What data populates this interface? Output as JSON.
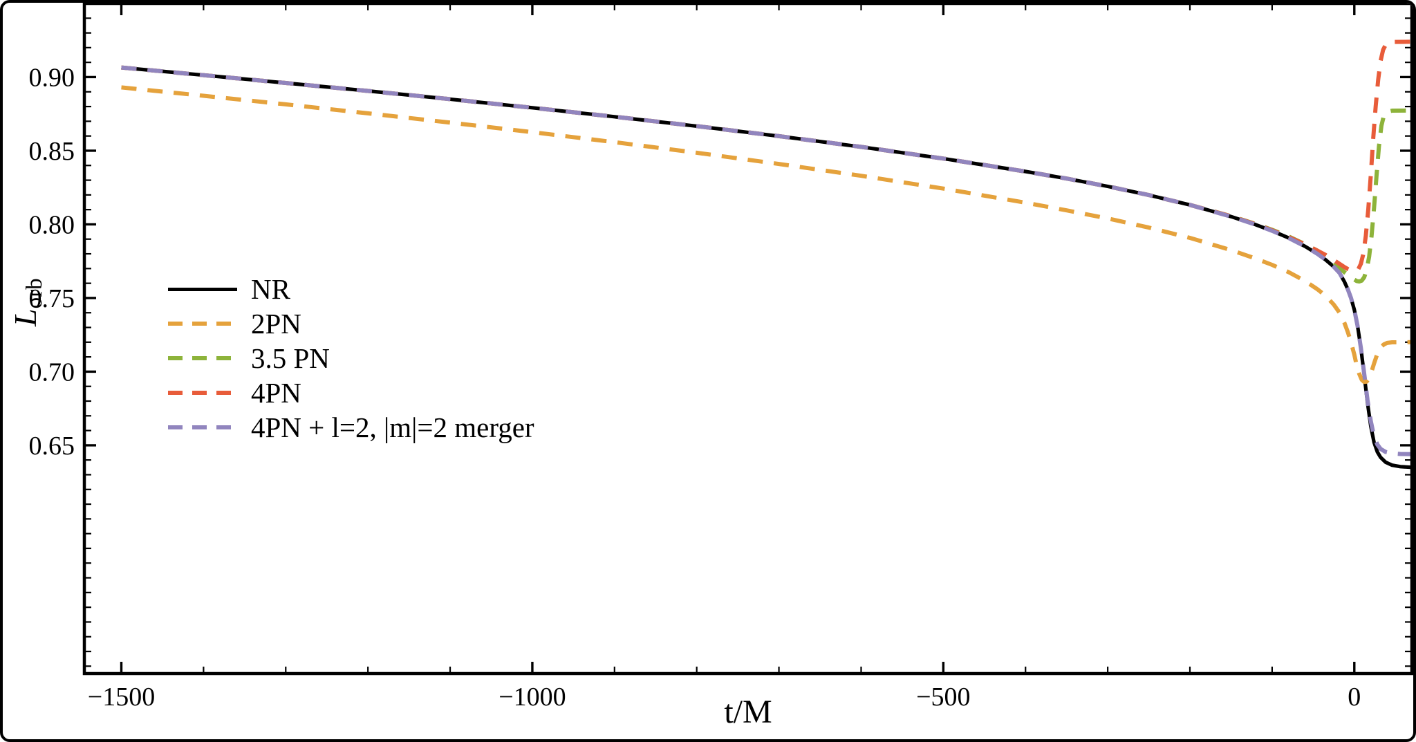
{
  "figure": {
    "background": "#ffffff",
    "frame_color": "#000000"
  },
  "axes": {
    "xlabel": "t/M",
    "ylabel": {
      "main": "L",
      "sub": "orb"
    },
    "x_range": [
      -1545,
      70
    ],
    "y_range": [
      0.495,
      0.95
    ],
    "x_minor_step": 100,
    "y_minor_step": 0.01,
    "frame_color": "#000000",
    "x_ticks": [
      {
        "v": -1500,
        "label": "−1500"
      },
      {
        "v": -1000,
        "label": "−1000"
      },
      {
        "v": -500,
        "label": "−500"
      },
      {
        "v": 0,
        "label": "0"
      }
    ],
    "y_ticks": [
      {
        "v": 0.65,
        "label": "0.65"
      },
      {
        "v": 0.7,
        "label": "0.70"
      },
      {
        "v": 0.75,
        "label": "0.75"
      },
      {
        "v": 0.8,
        "label": "0.80"
      },
      {
        "v": 0.85,
        "label": "0.85"
      },
      {
        "v": 0.9,
        "label": "0.90"
      }
    ]
  },
  "chart_data": {
    "type": "line",
    "title": "",
    "xlabel": "t/M",
    "ylabel": "L_orb",
    "xlim": [
      -1545,
      70
    ],
    "ylim": [
      0.495,
      0.95
    ],
    "grid": false,
    "legend_position": "inside-left-middle",
    "series": [
      {
        "id": "nr",
        "name": "NR",
        "color": "#000000",
        "style": "solid",
        "width": 5.2,
        "points": [
          [
            -1500,
            0.9065
          ],
          [
            -1400,
            0.9013
          ],
          [
            -1300,
            0.896
          ],
          [
            -1200,
            0.8906
          ],
          [
            -1100,
            0.885
          ],
          [
            -1000,
            0.8792
          ],
          [
            -900,
            0.8731
          ],
          [
            -800,
            0.8667
          ],
          [
            -700,
            0.8599
          ],
          [
            -600,
            0.8526
          ],
          [
            -500,
            0.8447
          ],
          [
            -400,
            0.8359
          ],
          [
            -350,
            0.8311
          ],
          [
            -300,
            0.8258
          ],
          [
            -250,
            0.8199
          ],
          [
            -200,
            0.8132
          ],
          [
            -150,
            0.8053
          ],
          [
            -120,
            0.7998
          ],
          [
            -100,
            0.7956
          ],
          [
            -80,
            0.7908
          ],
          [
            -60,
            0.7851
          ],
          [
            -45,
            0.78
          ],
          [
            -35,
            0.776
          ],
          [
            -25,
            0.7712
          ],
          [
            -18,
            0.767
          ],
          [
            -12,
            0.761
          ],
          [
            -8,
            0.756
          ],
          [
            -4,
            0.75
          ],
          [
            0,
            0.742
          ],
          [
            4,
            0.731
          ],
          [
            8,
            0.716
          ],
          [
            12,
            0.698
          ],
          [
            16,
            0.679
          ],
          [
            20,
            0.663
          ],
          [
            24,
            0.652
          ],
          [
            28,
            0.6455
          ],
          [
            32,
            0.6418
          ],
          [
            38,
            0.6385
          ],
          [
            46,
            0.6365
          ],
          [
            56,
            0.6355
          ],
          [
            70,
            0.635
          ]
        ]
      },
      {
        "id": "2pn",
        "name": "2PN",
        "color": "#E5A23C",
        "style": "dashed",
        "width": 6,
        "points": [
          [
            -1500,
            0.893
          ],
          [
            -1400,
            0.8873
          ],
          [
            -1300,
            0.8815
          ],
          [
            -1200,
            0.8754
          ],
          [
            -1100,
            0.8691
          ],
          [
            -1000,
            0.8626
          ],
          [
            -900,
            0.8558
          ],
          [
            -800,
            0.8486
          ],
          [
            -700,
            0.841
          ],
          [
            -600,
            0.833
          ],
          [
            -500,
            0.8243
          ],
          [
            -400,
            0.8147
          ],
          [
            -350,
            0.8095
          ],
          [
            -300,
            0.804
          ],
          [
            -250,
            0.7978
          ],
          [
            -200,
            0.7908
          ],
          [
            -150,
            0.7825
          ],
          [
            -120,
            0.7768
          ],
          [
            -100,
            0.7725
          ],
          [
            -80,
            0.7676
          ],
          [
            -60,
            0.7616
          ],
          [
            -45,
            0.756
          ],
          [
            -35,
            0.7515
          ],
          [
            -25,
            0.7455
          ],
          [
            -18,
            0.74
          ],
          [
            -12,
            0.733
          ],
          [
            -8,
            0.727
          ],
          [
            -4,
            0.72
          ],
          [
            0,
            0.7115
          ],
          [
            3,
            0.704
          ],
          [
            6,
            0.6985
          ],
          [
            9,
            0.6945
          ],
          [
            12,
            0.693
          ],
          [
            15,
            0.6932
          ],
          [
            18,
            0.6955
          ],
          [
            21,
            0.7
          ],
          [
            24,
            0.7055
          ],
          [
            27,
            0.7105
          ],
          [
            30,
            0.7145
          ],
          [
            33,
            0.717
          ],
          [
            36,
            0.7185
          ],
          [
            40,
            0.7195
          ],
          [
            46,
            0.7199
          ],
          [
            70,
            0.72
          ]
        ]
      },
      {
        "id": "3p5pn",
        "name": "3.5 PN",
        "color": "#8DB33A",
        "style": "dashed",
        "width": 6,
        "points": [
          [
            -1500,
            0.9065
          ],
          [
            -1400,
            0.9013
          ],
          [
            -1300,
            0.896
          ],
          [
            -1200,
            0.8906
          ],
          [
            -1100,
            0.885
          ],
          [
            -1000,
            0.8792
          ],
          [
            -900,
            0.8731
          ],
          [
            -800,
            0.8667
          ],
          [
            -700,
            0.8599
          ],
          [
            -600,
            0.8526
          ],
          [
            -500,
            0.8447
          ],
          [
            -400,
            0.8359
          ],
          [
            -350,
            0.8311
          ],
          [
            -300,
            0.8258
          ],
          [
            -250,
            0.8199
          ],
          [
            -200,
            0.8132
          ],
          [
            -150,
            0.8056
          ],
          [
            -120,
            0.8003
          ],
          [
            -100,
            0.7963
          ],
          [
            -80,
            0.7918
          ],
          [
            -60,
            0.7866
          ],
          [
            -45,
            0.7822
          ],
          [
            -35,
            0.7788
          ],
          [
            -25,
            0.774
          ],
          [
            -18,
            0.7705
          ],
          [
            -12,
            0.7675
          ],
          [
            -8,
            0.7658
          ],
          [
            -4,
            0.764
          ],
          [
            0,
            0.7625
          ],
          [
            3,
            0.7615
          ],
          [
            6,
            0.7612
          ],
          [
            9,
            0.7618
          ],
          [
            12,
            0.764
          ],
          [
            15,
            0.769
          ],
          [
            18,
            0.778
          ],
          [
            21,
            0.792
          ],
          [
            24,
            0.811
          ],
          [
            27,
            0.833
          ],
          [
            30,
            0.853
          ],
          [
            33,
            0.867
          ],
          [
            36,
            0.874
          ],
          [
            40,
            0.8765
          ],
          [
            46,
            0.8772
          ],
          [
            70,
            0.8773
          ]
        ]
      },
      {
        "id": "4pn",
        "name": "4PN",
        "color": "#E85C3A",
        "style": "dashed",
        "width": 6,
        "points": [
          [
            -1500,
            0.9065
          ],
          [
            -1400,
            0.9013
          ],
          [
            -1300,
            0.896
          ],
          [
            -1200,
            0.8906
          ],
          [
            -1100,
            0.885
          ],
          [
            -1000,
            0.8792
          ],
          [
            -900,
            0.8731
          ],
          [
            -800,
            0.8667
          ],
          [
            -700,
            0.8599
          ],
          [
            -600,
            0.8526
          ],
          [
            -500,
            0.8447
          ],
          [
            -400,
            0.8359
          ],
          [
            -350,
            0.8311
          ],
          [
            -300,
            0.8258
          ],
          [
            -250,
            0.8199
          ],
          [
            -200,
            0.8132
          ],
          [
            -150,
            0.8055
          ],
          [
            -120,
            0.8001
          ],
          [
            -100,
            0.796
          ],
          [
            -80,
            0.7915
          ],
          [
            -60,
            0.7864
          ],
          [
            -45,
            0.7822
          ],
          [
            -35,
            0.7792
          ],
          [
            -25,
            0.7757
          ],
          [
            -18,
            0.7732
          ],
          [
            -12,
            0.771
          ],
          [
            -8,
            0.7697
          ],
          [
            -4,
            0.7687
          ],
          [
            -1,
            0.7682
          ],
          [
            2,
            0.7684
          ],
          [
            5,
            0.7697
          ],
          [
            8,
            0.7732
          ],
          [
            11,
            0.7802
          ],
          [
            14,
            0.7922
          ],
          [
            17,
            0.8102
          ],
          [
            20,
            0.8332
          ],
          [
            23,
            0.8582
          ],
          [
            26,
            0.8802
          ],
          [
            29,
            0.8982
          ],
          [
            32,
            0.911
          ],
          [
            35,
            0.9185
          ],
          [
            38,
            0.9218
          ],
          [
            42,
            0.9233
          ],
          [
            48,
            0.9239
          ],
          [
            70,
            0.924
          ]
        ]
      },
      {
        "id": "4pn-merger",
        "name": "4PN + l=2, |m|=2 merger",
        "color": "#9185BE",
        "style": "dashed",
        "width": 6,
        "points": [
          [
            -1500,
            0.9065
          ],
          [
            -1400,
            0.9013
          ],
          [
            -1300,
            0.896
          ],
          [
            -1200,
            0.8906
          ],
          [
            -1100,
            0.885
          ],
          [
            -1000,
            0.8792
          ],
          [
            -900,
            0.8731
          ],
          [
            -800,
            0.8667
          ],
          [
            -700,
            0.8599
          ],
          [
            -600,
            0.8526
          ],
          [
            -500,
            0.8447
          ],
          [
            -400,
            0.8359
          ],
          [
            -350,
            0.8311
          ],
          [
            -300,
            0.8258
          ],
          [
            -250,
            0.8199
          ],
          [
            -200,
            0.8132
          ],
          [
            -150,
            0.8053
          ],
          [
            -120,
            0.7998
          ],
          [
            -100,
            0.7956
          ],
          [
            -80,
            0.7908
          ],
          [
            -60,
            0.7851
          ],
          [
            -45,
            0.78
          ],
          [
            -35,
            0.776
          ],
          [
            -25,
            0.7712
          ],
          [
            -18,
            0.767
          ],
          [
            -12,
            0.761
          ],
          [
            -8,
            0.756
          ],
          [
            -4,
            0.75
          ],
          [
            0,
            0.742
          ],
          [
            4,
            0.731
          ],
          [
            8,
            0.716
          ],
          [
            12,
            0.699
          ],
          [
            16,
            0.681
          ],
          [
            20,
            0.6665
          ],
          [
            24,
            0.656
          ],
          [
            28,
            0.6505
          ],
          [
            32,
            0.6475
          ],
          [
            38,
            0.6455
          ],
          [
            46,
            0.6445
          ],
          [
            56,
            0.6441
          ],
          [
            70,
            0.644
          ]
        ]
      }
    ]
  }
}
